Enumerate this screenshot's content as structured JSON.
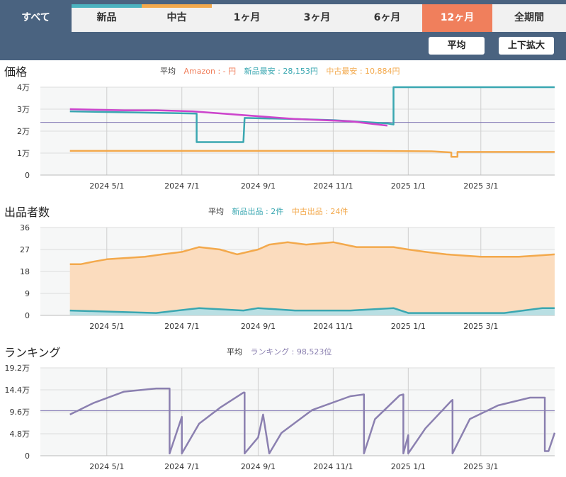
{
  "tabs": [
    {
      "label": "すべて",
      "active": true
    },
    {
      "label": "新品",
      "stripe": "#4bb3c0"
    },
    {
      "label": "中古",
      "stripe": "#f3a94c"
    },
    {
      "label": "1ヶ月"
    },
    {
      "label": "3ヶ月"
    },
    {
      "label": "6ヶ月"
    },
    {
      "label": "12ヶ月",
      "selected": true
    },
    {
      "label": "全期間"
    }
  ],
  "buttons": {
    "average": "平均",
    "zoom": "上下拡大"
  },
  "colors": {
    "amazon": "#f07f5c",
    "new": "#3aa7b1",
    "used": "#f3a94c",
    "ranking": "#8b80b0",
    "magenta": "#cc44cc",
    "avgline": "#7a6fb0"
  },
  "price": {
    "title": "価格",
    "avg_label": "平均",
    "amazon": "Amazon : - 円",
    "new_min": "新品最安 : 28,153円",
    "used_min": "中古最安 : 10,884円"
  },
  "sellers": {
    "title": "出品者数",
    "avg_label": "平均",
    "new": "新品出品 : 2件",
    "used": "中古出品 : 24件"
  },
  "ranking": {
    "title": "ランキング",
    "avg_label": "平均",
    "rank": "ランキング : 98,523位"
  },
  "chart_data": [
    {
      "type": "line",
      "id": "price",
      "ylabel": "価格",
      "ylim": [
        0,
        40000
      ],
      "yticks": [
        "0",
        "1万",
        "2万",
        "3万",
        "4万"
      ],
      "xticks": [
        "2024 5/1",
        "2024 7/1",
        "2024 9/1",
        "2024 11/1",
        "2025 1/1",
        "2025 3/1"
      ],
      "average": 24000,
      "series": [
        {
          "name": "新品最安",
          "color": "#3aa7b1",
          "x": [
            "2024-04-01",
            "2024-07-13",
            "2024-07-13",
            "2024-08-20",
            "2024-08-21",
            "2024-09-30",
            "2024-11-01",
            "2024-12-15",
            "2024-12-20",
            "2024-12-20",
            "2025-04-30"
          ],
          "y": [
            29000,
            28000,
            15000,
            15000,
            26000,
            25500,
            25000,
            23500,
            23000,
            40000,
            40000
          ]
        },
        {
          "name": "中古最安",
          "color": "#f3a94c",
          "x": [
            "2024-04-01",
            "2024-12-01",
            "2025-01-20",
            "2025-02-05",
            "2025-02-05",
            "2025-02-10",
            "2025-02-10",
            "2025-04-30"
          ],
          "y": [
            11000,
            11000,
            10800,
            10300,
            8300,
            8300,
            10500,
            10500
          ]
        },
        {
          "name": "magenta",
          "color": "#cc44cc",
          "x": [
            "2024-04-01",
            "2024-05-15",
            "2024-06-10",
            "2024-07-10",
            "2024-10-01",
            "2024-11-15",
            "2024-12-15"
          ],
          "y": [
            30000,
            29500,
            29500,
            29000,
            25500,
            24500,
            22500
          ]
        }
      ]
    },
    {
      "type": "area",
      "id": "sellers",
      "ylabel": "出品者数",
      "ylim": [
        0,
        36
      ],
      "yticks": [
        "0",
        "9",
        "18",
        "27",
        "36"
      ],
      "xticks": [
        "2024 5/1",
        "2024 7/1",
        "2024 9/1",
        "2024 11/1",
        "2025 1/1",
        "2025 3/1"
      ],
      "series": [
        {
          "name": "中古出品",
          "color": "#f3a94c",
          "x": [
            "2024-04-01",
            "2024-04-10",
            "2024-04-20",
            "2024-05-01",
            "2024-06-01",
            "2024-06-15",
            "2024-07-01",
            "2024-07-15",
            "2024-08-01",
            "2024-08-15",
            "2024-09-01",
            "2024-09-10",
            "2024-09-25",
            "2024-10-10",
            "2024-11-01",
            "2024-11-20",
            "2024-12-01",
            "2024-12-20",
            "2025-01-01",
            "2025-01-15",
            "2025-02-01",
            "2025-03-01",
            "2025-04-01",
            "2025-04-30"
          ],
          "y": [
            21,
            21,
            22,
            23,
            24,
            25,
            26,
            28,
            27,
            25,
            27,
            29,
            30,
            29,
            30,
            28,
            28,
            28,
            27,
            26,
            25,
            24,
            24,
            25
          ]
        },
        {
          "name": "新品出品",
          "color": "#3aa7b1",
          "x": [
            "2024-04-01",
            "2024-06-10",
            "2024-07-15",
            "2024-08-20",
            "2024-09-01",
            "2024-10-01",
            "2024-11-15",
            "2024-12-20",
            "2025-01-01",
            "2025-03-20",
            "2025-04-20",
            "2025-04-30"
          ],
          "y": [
            2,
            1,
            3,
            2,
            3,
            2,
            2,
            3,
            1,
            1,
            3,
            3
          ]
        }
      ]
    },
    {
      "type": "line",
      "id": "ranking",
      "ylabel": "ランキング",
      "ylim": [
        0,
        192000
      ],
      "yticks": [
        "0",
        "4.8万",
        "9.6万",
        "14.4万",
        "19.2万"
      ],
      "xticks": [
        "2024 5/1",
        "2024 7/1",
        "2024 9/1",
        "2024 11/1",
        "2025 1/1",
        "2025 3/1"
      ],
      "average": 98523,
      "series": [
        {
          "name": "ランキング",
          "color": "#8b80b0",
          "x": [
            "2024-04-01",
            "2024-04-20",
            "2024-05-15",
            "2024-06-10",
            "2024-06-21",
            "2024-06-21",
            "2024-07-01",
            "2024-07-01",
            "2024-07-15",
            "2024-08-01",
            "2024-08-20",
            "2024-08-21",
            "2024-08-21",
            "2024-09-01",
            "2024-09-05",
            "2024-09-10",
            "2024-09-20",
            "2024-10-15",
            "2024-11-15",
            "2024-11-26",
            "2024-11-26",
            "2024-12-05",
            "2024-12-25",
            "2024-12-28",
            "2024-12-28",
            "2025-01-01",
            "2025-01-01",
            "2025-01-15",
            "2025-02-05",
            "2025-02-06",
            "2025-02-06",
            "2025-02-20",
            "2025-03-15",
            "2025-04-10",
            "2025-04-22",
            "2025-04-22",
            "2025-04-25",
            "2025-04-30"
          ],
          "y": [
            90000,
            115000,
            140000,
            147000,
            147000,
            5000,
            85000,
            5000,
            70000,
            105000,
            138000,
            138000,
            5000,
            40000,
            90000,
            5000,
            50000,
            100000,
            130000,
            134000,
            5000,
            80000,
            132000,
            134000,
            5000,
            45000,
            5000,
            60000,
            120000,
            122000,
            5000,
            80000,
            110000,
            127000,
            127000,
            10000,
            10000,
            50000
          ]
        }
      ]
    }
  ]
}
